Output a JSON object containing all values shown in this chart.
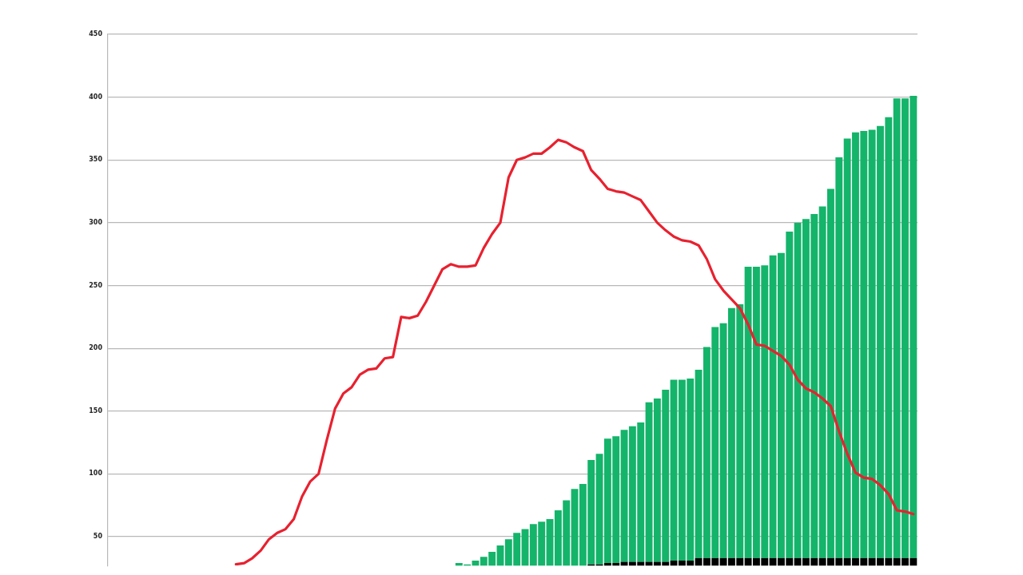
{
  "chart_data": {
    "type": "bar",
    "stacked": true,
    "grid": "y",
    "legend": false,
    "tick_labels": "y",
    "marker": "none",
    "line_style": "solid",
    "categories": [
      null,
      null,
      null,
      null,
      null,
      null,
      null,
      null,
      null,
      null,
      null,
      null,
      null,
      null,
      null,
      null,
      null,
      null,
      null,
      null,
      null,
      null,
      null,
      null,
      null,
      null,
      null,
      null,
      null,
      null,
      null,
      null,
      null,
      null,
      null,
      null,
      null,
      null,
      null,
      null,
      null,
      null,
      null,
      null,
      null,
      null,
      null,
      null,
      null,
      null,
      null,
      null,
      null,
      null,
      null,
      null,
      null,
      null,
      null,
      null,
      null,
      null,
      null,
      null,
      null,
      null,
      null,
      null,
      null,
      null,
      null,
      null,
      null,
      null,
      null,
      null,
      null,
      null,
      null,
      null,
      null,
      null,
      null,
      null,
      null,
      null,
      null,
      null,
      null,
      null,
      null,
      null,
      null,
      null,
      null,
      null,
      null,
      null
    ],
    "ylim": [
      27,
      450
    ],
    "yticks": [
      50,
      100,
      150,
      200,
      250,
      300,
      350,
      400,
      450
    ],
    "series": [
      {
        "color": "#000000",
        "values": [
          null,
          null,
          null,
          null,
          null,
          null,
          null,
          null,
          null,
          null,
          null,
          null,
          null,
          null,
          null,
          null,
          null,
          null,
          null,
          null,
          null,
          null,
          null,
          null,
          null,
          null,
          null,
          null,
          null,
          null,
          null,
          null,
          null,
          null,
          null,
          null,
          null,
          null,
          null,
          null,
          null,
          null,
          null,
          null,
          null,
          null,
          null,
          null,
          null,
          null,
          null,
          null,
          null,
          null,
          null,
          null,
          null,
          null,
          28,
          28,
          29,
          29,
          30,
          30,
          30,
          30,
          30,
          30,
          31,
          31,
          31,
          33,
          33,
          33,
          33,
          33,
          33,
          33,
          33,
          33,
          33,
          33,
          33,
          33,
          33,
          33,
          33,
          33,
          33,
          33,
          33,
          33,
          33,
          33,
          33,
          33,
          33,
          33
        ]
      },
      {
        "color": "#14b46a",
        "values": [
          null,
          null,
          null,
          null,
          null,
          null,
          null,
          null,
          null,
          null,
          null,
          null,
          null,
          null,
          null,
          null,
          null,
          null,
          null,
          null,
          null,
          null,
          null,
          null,
          null,
          null,
          null,
          null,
          null,
          null,
          null,
          null,
          null,
          null,
          null,
          null,
          null,
          null,
          null,
          null,
          null,
          null,
          29,
          28,
          31,
          34,
          38,
          43,
          48,
          53,
          56,
          60,
          62,
          64,
          71,
          79,
          88,
          92,
          83,
          88,
          99,
          101,
          105,
          108,
          111,
          127,
          130,
          137,
          144,
          144,
          145,
          150,
          168,
          184,
          187,
          199,
          202,
          232,
          232,
          233,
          241,
          243,
          260,
          267,
          270,
          274,
          280,
          294,
          319,
          334,
          339,
          340,
          341,
          344,
          351,
          366,
          366,
          368
        ]
      },
      {
        "type": "line",
        "color": "#e8212f",
        "values": [
          null,
          null,
          null,
          null,
          null,
          null,
          null,
          null,
          null,
          null,
          null,
          null,
          null,
          null,
          null,
          28,
          29,
          33,
          39,
          48,
          53,
          56,
          64,
          82,
          94,
          100,
          127,
          152,
          164,
          169,
          179,
          183,
          184,
          192,
          193,
          225,
          224,
          226,
          237,
          250,
          263,
          267,
          265,
          265,
          266,
          280,
          291,
          300,
          336,
          350,
          352,
          355,
          355,
          360,
          366,
          364,
          360,
          357,
          342,
          335,
          327,
          325,
          324,
          321,
          318,
          309,
          300,
          294,
          289,
          286,
          285,
          282,
          271,
          255,
          246,
          239,
          232,
          219,
          203,
          202,
          198,
          194,
          187,
          175,
          168,
          165,
          160,
          154,
          134,
          116,
          101,
          97,
          96,
          91,
          84,
          71,
          70,
          68
        ]
      }
    ]
  }
}
